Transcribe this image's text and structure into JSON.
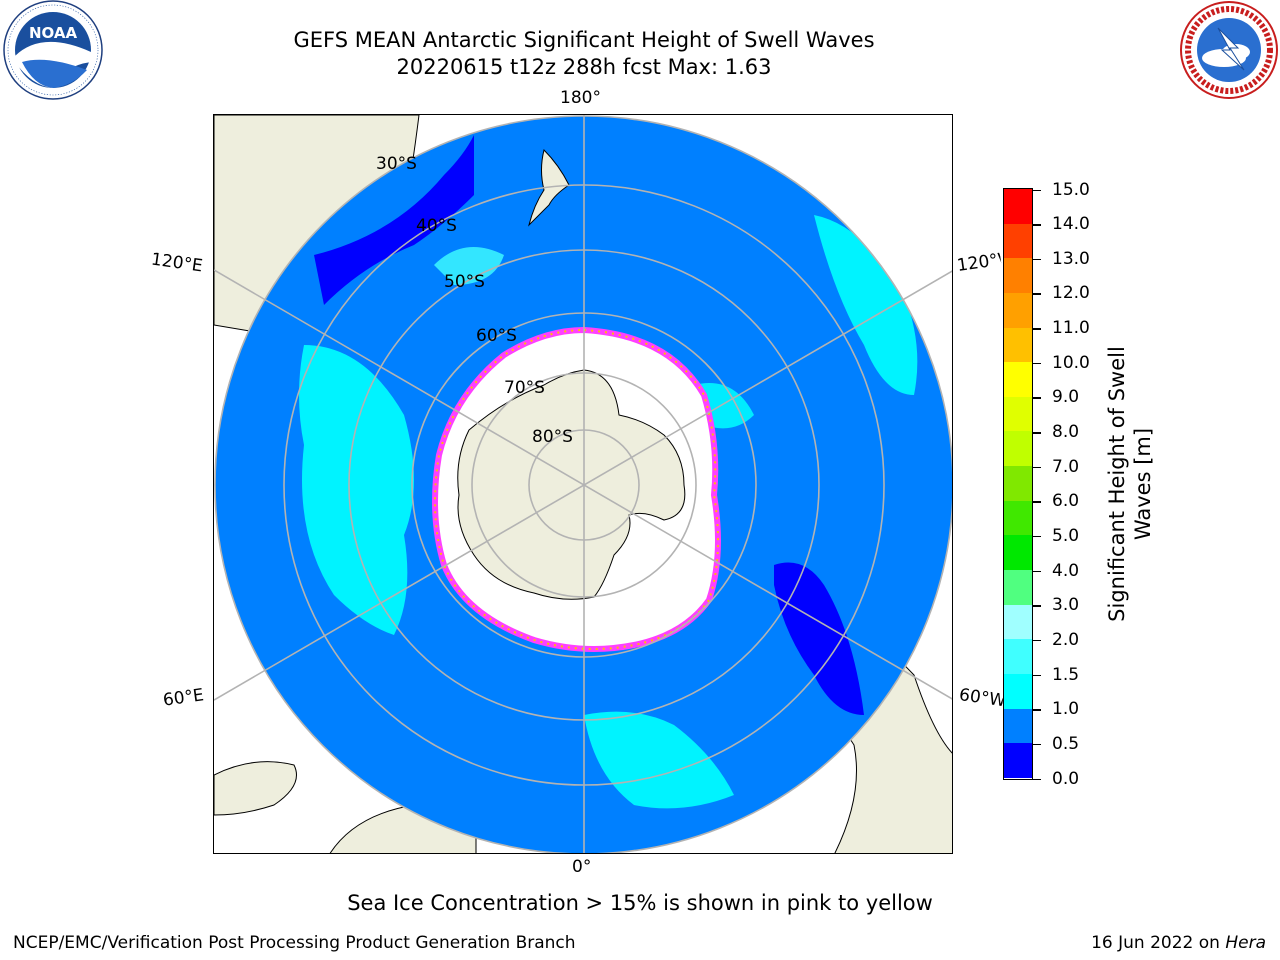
{
  "header": {
    "title_line1": "GEFS MEAN Antarctic Significant Height of Swell Waves",
    "title_line2": "20220615 t12z 288h fcst   Max: 1.63"
  },
  "logos": {
    "left": {
      "text": "NOAA",
      "ring_text": "NATIONAL OCEANIC AND ATMOSPHERIC ADMINISTRATION · U.S. DEPARTMENT OF COMMERCE"
    },
    "right": {
      "ring_text": "NATIONAL WEATHER SERVICE"
    }
  },
  "map": {
    "projection": "south-polar-stereographic",
    "lon_labels": {
      "top": "180°",
      "bottom": "0°",
      "upper_left": "120°E",
      "upper_right": "120°W",
      "lower_left": "60°E",
      "lower_right": "60°W"
    },
    "lat_labels": [
      "30°S",
      "40°S",
      "50°S",
      "60°S",
      "70°S",
      "80°S"
    ],
    "colors": {
      "land": "#eeeedd",
      "ocean_low": "#0000ff",
      "ocean_main": "#0080ff",
      "swell_cyan": "#00ffff",
      "ice": "#ffffff",
      "ice_edge": "#ff40ff",
      "grid": "#b3b3b3"
    }
  },
  "colorbar": {
    "title_line1": "Significant Height of Swell",
    "title_line2": "Waves [m]",
    "ticks": [
      "0.0",
      "0.5",
      "1.0",
      "1.5",
      "2.0",
      "3.0",
      "4.0",
      "5.0",
      "6.0",
      "7.0",
      "8.0",
      "9.0",
      "10.0",
      "11.0",
      "12.0",
      "13.0",
      "14.0",
      "15.0"
    ],
    "colors": [
      "#0000ff",
      "#0080ff",
      "#00ffff",
      "#40ffff",
      "#a0ffff",
      "#50ff80",
      "#00e800",
      "#40e800",
      "#80e800",
      "#c0ff00",
      "#e0ff00",
      "#ffff00",
      "#ffc000",
      "#ffa000",
      "#ff8000",
      "#ff4000",
      "#ff0000"
    ]
  },
  "caption": "Sea Ice Concentration > 15% is shown in pink to yellow",
  "footer": {
    "left": "NCEP/EMC/Verification Post Processing Product Generation Branch",
    "right_prefix": "16 Jun 2022 on ",
    "right_host": "Hera"
  }
}
